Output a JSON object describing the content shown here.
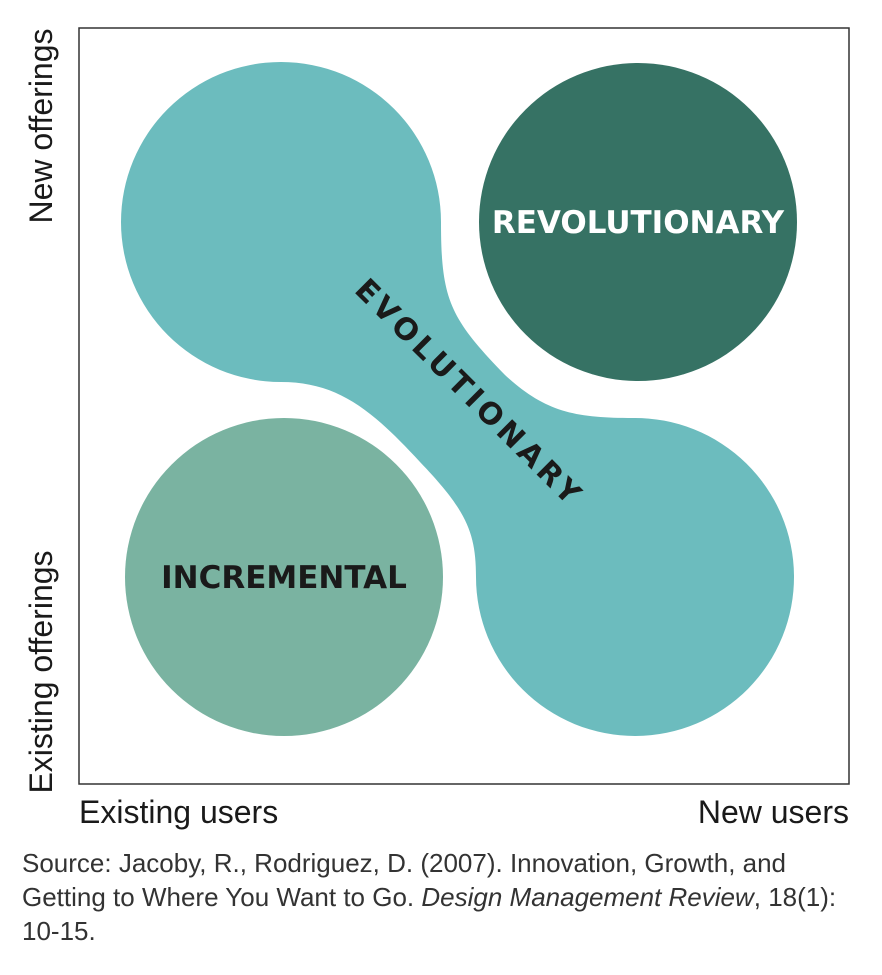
{
  "axes": {
    "y_top": "New offerings",
    "y_bottom": "Existing offerings",
    "x_left": "Existing users",
    "x_right": "New users"
  },
  "regions": {
    "revolutionary": "REVOLUTIONARY",
    "evolutionary": "EVOLUTIONARY",
    "incremental": "INCREMENTAL"
  },
  "colors": {
    "evolutionary": "#6cbcbe",
    "revolutionary": "#367264",
    "incremental": "#7ab3a1",
    "frame": "#333333",
    "text_dark": "#1a1a1a",
    "text_light": "#ffffff"
  },
  "caption": {
    "prefix": "Source: Jacoby, R., Rodriguez, D. (2007). Innovation, Growth, and Getting to Where You Want to Go. ",
    "journal": "Design Management Review",
    "suffix": ", 18(1): 10-15."
  }
}
